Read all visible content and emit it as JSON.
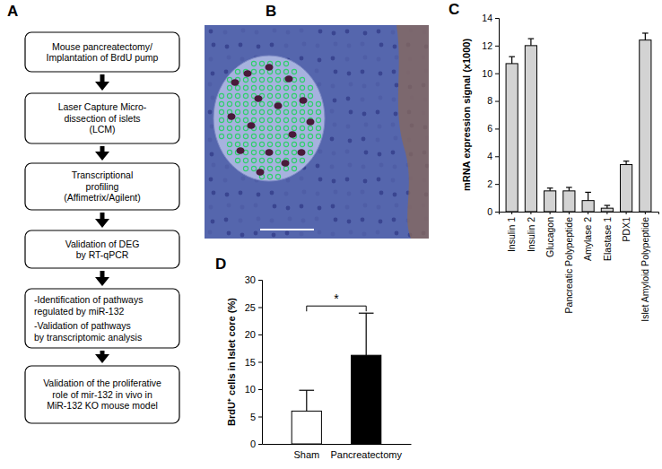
{
  "panel_labels": [
    "A",
    "B",
    "C",
    "D"
  ],
  "diagram": {
    "nodes": [
      {
        "lines": [
          "Mouse pancreatectomy/",
          "Implantation of BrdU pump"
        ]
      },
      {
        "lines": [
          "Laser Capture Micro-",
          "dissection of islets",
          "(LCM)"
        ]
      },
      {
        "lines": [
          "Transcriptional",
          "profiling",
          "(Affimetrix/Agilent)"
        ]
      },
      {
        "lines": [
          "Validation of DEG",
          "by RT-qPCR"
        ]
      },
      {
        "lines": [
          "-Identification of pathways",
          "regulated by miR-132",
          "-Validation of pathways",
          "by transcriptomic analysis"
        ]
      },
      {
        "lines": [
          "Validation of the proliferative",
          "role of mir-132 in vivo in",
          "MiR-132 KO mouse model"
        ]
      }
    ]
  },
  "chart_data": [
    {
      "type": "bar",
      "y_label": "mRNA expression signal (x1000)",
      "categories": [
        "Insulin 1",
        "Insulin 2",
        "Glucagon",
        "Pancreatic Polypeptide",
        "Amylase 2",
        "Elastase 1",
        "PDX1",
        "Islet Amyloid Polypeptide"
      ],
      "values": [
        10.7,
        12.0,
        1.5,
        1.5,
        0.8,
        0.25,
        3.4,
        12.4
      ],
      "errors": [
        0.5,
        0.5,
        0.2,
        0.25,
        0.6,
        0.2,
        0.25,
        0.5
      ],
      "color": "#d3d3d3",
      "ylim": [
        0,
        14
      ],
      "yticks": [
        0,
        2,
        4,
        6,
        8,
        10,
        12,
        14
      ]
    },
    {
      "type": "bar",
      "y_label": "BrdU⁺ cells in Islet core (%)",
      "categories": [
        "Sham",
        "Pancreatectomy"
      ],
      "values": [
        6.0,
        16.2
      ],
      "errors": [
        3.8,
        7.7
      ],
      "colors": [
        "#ffffff",
        "#000000"
      ],
      "ylim": [
        0,
        30
      ],
      "yticks": [
        0,
        5,
        10,
        15,
        20,
        25,
        30
      ],
      "annotation": "*"
    }
  ]
}
